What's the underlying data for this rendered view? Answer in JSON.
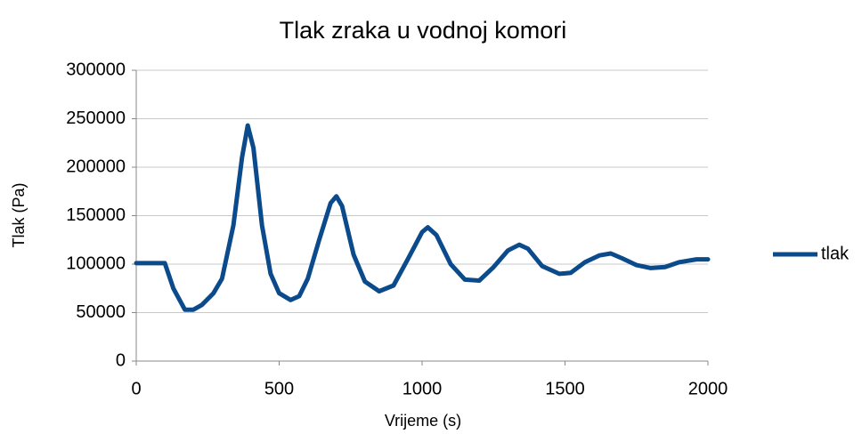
{
  "chart_data": {
    "type": "line",
    "title": "Tlak zraka u vodnoj komori",
    "x_label": "Vrijeme (s)",
    "y_label": "Tlak (Pa)",
    "x": [
      0,
      50,
      100,
      130,
      170,
      200,
      230,
      270,
      300,
      340,
      370,
      390,
      410,
      440,
      470,
      500,
      540,
      570,
      600,
      640,
      680,
      700,
      720,
      760,
      800,
      850,
      900,
      950,
      1000,
      1020,
      1050,
      1100,
      1150,
      1200,
      1250,
      1300,
      1340,
      1370,
      1420,
      1480,
      1520,
      1570,
      1620,
      1660,
      1700,
      1750,
      1800,
      1850,
      1900,
      1960,
      2000
    ],
    "series": [
      {
        "name": "tlak",
        "color": "#0b4a8b",
        "values": [
          101000,
          101000,
          101000,
          75000,
          53000,
          53000,
          58000,
          70000,
          85000,
          140000,
          210000,
          243000,
          220000,
          140000,
          90000,
          70000,
          63000,
          67000,
          85000,
          125000,
          163000,
          170000,
          160000,
          110000,
          82000,
          72000,
          78000,
          105000,
          133000,
          138000,
          130000,
          100000,
          84000,
          83000,
          97000,
          114000,
          120000,
          116000,
          98000,
          90000,
          91000,
          102000,
          109000,
          111000,
          106000,
          99000,
          96000,
          97000,
          102000,
          105000,
          105000
        ]
      }
    ],
    "xlim": [
      0,
      2000
    ],
    "xticks": [
      0,
      500,
      1000,
      1500,
      2000
    ],
    "ylim": [
      0,
      300000
    ],
    "yticks": [
      0,
      50000,
      100000,
      150000,
      200000,
      250000,
      300000
    ],
    "grid": true,
    "legend": "right"
  }
}
